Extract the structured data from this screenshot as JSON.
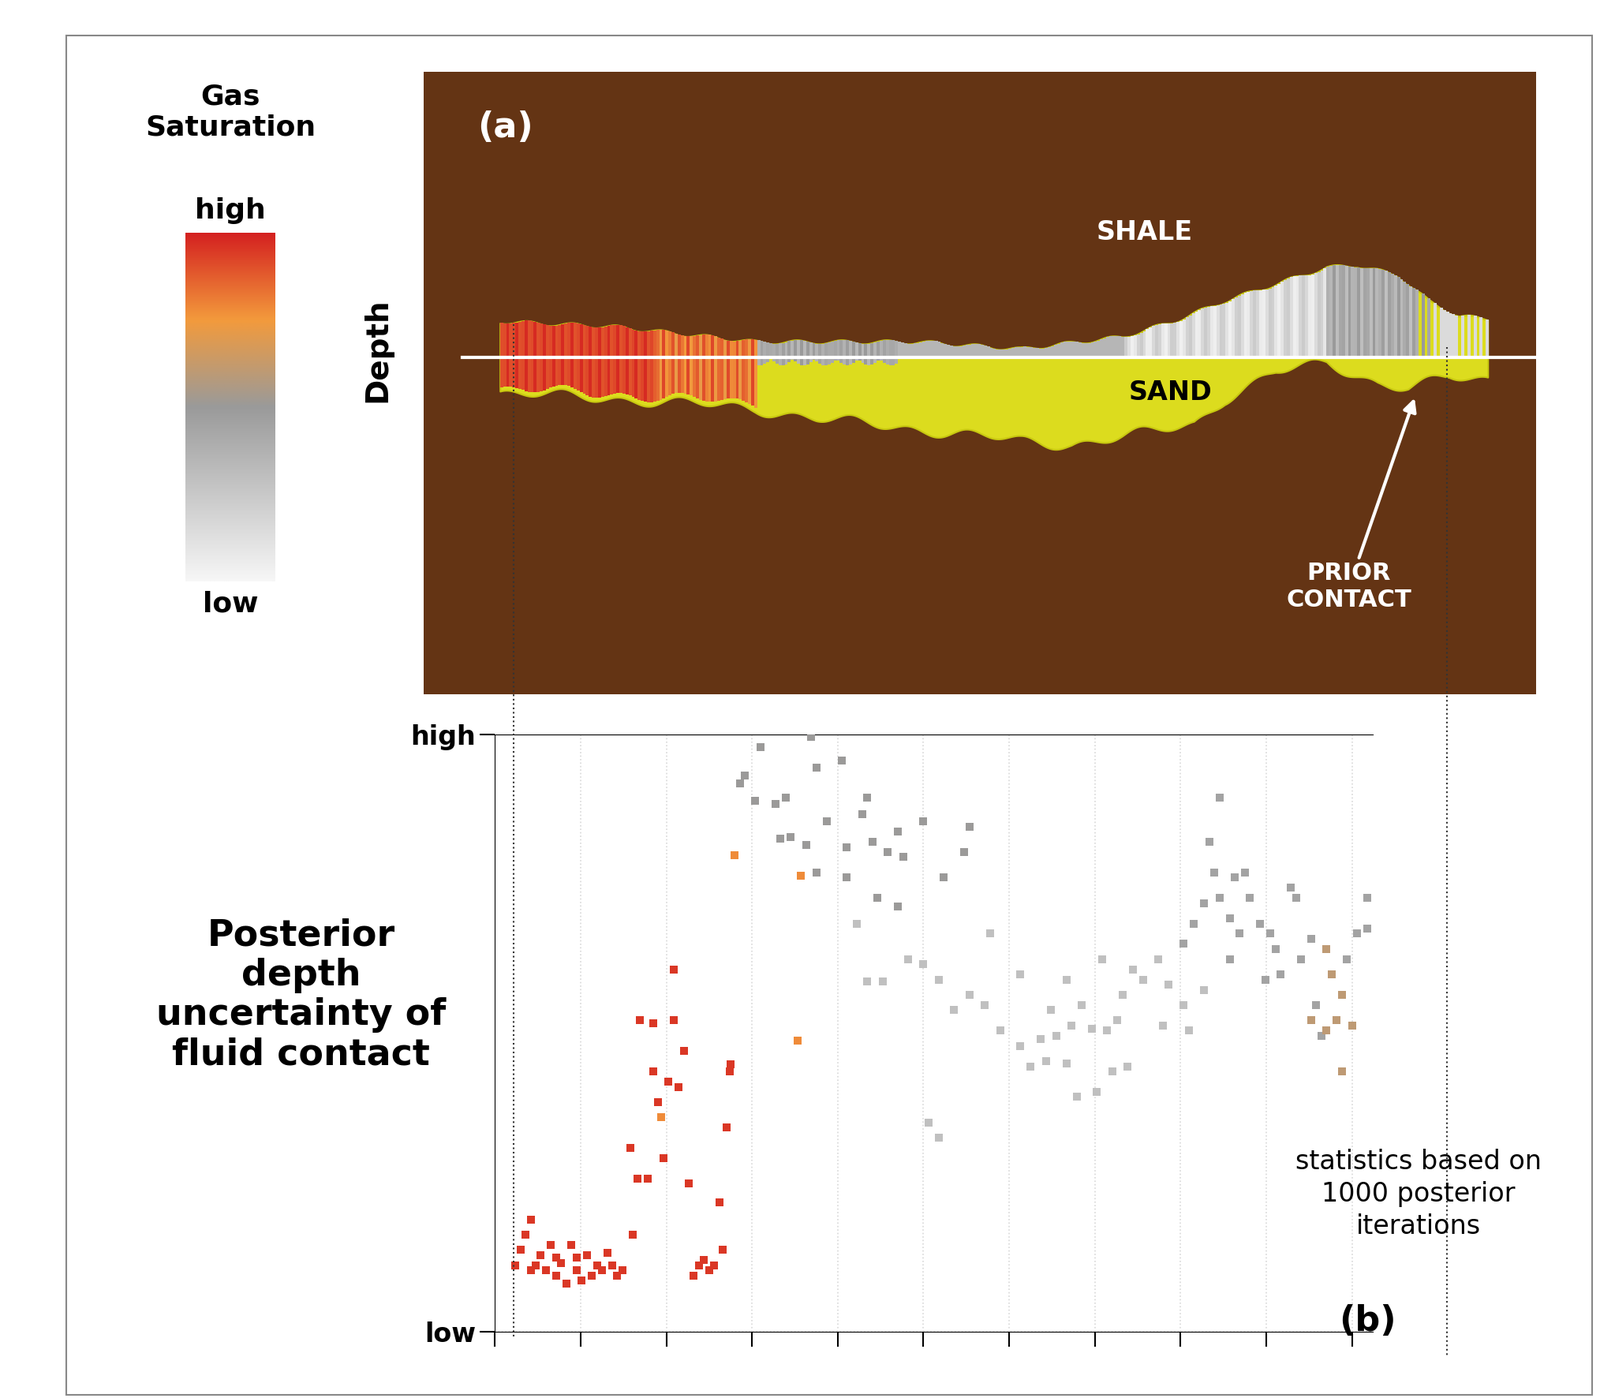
{
  "colorbar": {
    "label": "Gas\nSaturation",
    "range": [
      0,
      1
    ],
    "ticks": [
      {
        "value": 0,
        "label": "low"
      },
      {
        "value": 1,
        "label": "high"
      }
    ]
  },
  "cross_section": {
    "panel": "(a)",
    "y_label": "Depth",
    "labels": [
      "SHALE",
      "SAND"
    ],
    "annotation": "PRIOR\nCONTACT"
  },
  "chart_data": {
    "type": "scatter",
    "panel": "(b)",
    "y_label": "Posterior\ndepth\nuncertainty of\nfluid contact",
    "annotation": "statistics based on\n1000 posterior\niterations",
    "xlim": [
      0,
      860
    ],
    "xticks": [
      0,
      84,
      168,
      252,
      336,
      420,
      504,
      588,
      672,
      756,
      840
    ],
    "ylim": [
      0,
      585
    ],
    "yticks": [
      {
        "value": 0,
        "label": "low"
      },
      {
        "value": 585,
        "label": "high"
      }
    ],
    "grid": true,
    "tick_labels": "y",
    "marker": "square",
    "series": [
      {
        "saturation": 0.95,
        "x": [
          20,
          25,
          30,
          35,
          40,
          45,
          50,
          55,
          60,
          65,
          70,
          75,
          80,
          85,
          90,
          95,
          100,
          105,
          110,
          115,
          120,
          125,
          35,
          60,
          80,
          135,
          133,
          140,
          150,
          155,
          160,
          165,
          170,
          175,
          180,
          185,
          142,
          155,
          175,
          190,
          195,
          200,
          205,
          210,
          215,
          220,
          223,
          227,
          230,
          231
        ],
        "values": [
          65,
          80,
          95,
          110,
          65,
          75,
          60,
          85,
          55,
          67,
          47,
          85,
          60,
          50,
          75,
          55,
          65,
          60,
          77,
          65,
          55,
          60,
          60,
          73,
          73,
          95,
          180,
          150,
          150,
          255,
          225,
          170,
          245,
          305,
          240,
          275,
          305,
          302,
          355,
          145,
          55,
          65,
          70,
          60,
          65,
          127,
          80,
          200,
          255,
          262
        ]
      },
      {
        "saturation": 0.78,
        "x": [
          163,
          235,
          300,
          297
        ],
        "values": [
          210,
          467,
          447,
          285
        ]
      },
      {
        "saturation": 0.5,
        "x": [
          240,
          245,
          260,
          255,
          275,
          285,
          310,
          315,
          340,
          365,
          360,
          280,
          290,
          305,
          325,
          345,
          370,
          395,
          420,
          465,
          315,
          345,
          375,
          395,
          440,
          400,
          460,
          385
        ],
        "values": [
          537,
          545,
          573,
          520,
          517,
          523,
          583,
          553,
          560,
          523,
          507,
          483,
          485,
          477,
          500,
          475,
          480,
          490,
          500,
          495,
          450,
          445,
          425,
          417,
          445,
          465,
          470,
          470
        ]
      },
      {
        "saturation": 0.3,
        "x": [
          355,
          365,
          380,
          405,
          420,
          435,
          450,
          465,
          480,
          495,
          515,
          535,
          550,
          565,
          585,
          525,
          540,
          560,
          570,
          590,
          605,
          620,
          600,
          615,
          635,
          650,
          660,
          675,
          680,
          695,
          655,
          425,
          435,
          610,
          625,
          545,
          575,
          595,
          515,
          485,
          560
        ],
        "values": [
          400,
          343,
          343,
          365,
          360,
          345,
          315,
          330,
          320,
          295,
          280,
          287,
          290,
          300,
          297,
          260,
          265,
          263,
          230,
          235,
          255,
          260,
          295,
          330,
          345,
          365,
          340,
          320,
          295,
          335,
          300,
          205,
          190,
          305,
          355,
          315,
          320,
          365,
          350,
          390,
          345
        ]
      },
      {
        "saturation": 0.45,
        "x": [
          710,
          700,
          705,
          725,
          735,
          695,
          710,
          720,
          730,
          740,
          750,
          760,
          765,
          780,
          785,
          790,
          800,
          835,
          845,
          855,
          855,
          805,
          810,
          755,
          770,
          720,
          685,
          675
        ],
        "values": [
          523,
          480,
          450,
          445,
          450,
          420,
          425,
          405,
          390,
          425,
          400,
          390,
          375,
          435,
          425,
          365,
          385,
          365,
          390,
          425,
          395,
          320,
          290,
          345,
          350,
          365,
          400,
          380
        ]
      },
      {
        "saturation": 0.6,
        "x": [
          815,
          820,
          830,
          800,
          815,
          825,
          840,
          830
        ],
        "values": [
          375,
          350,
          330,
          305,
          295,
          305,
          300,
          255
        ]
      }
    ]
  }
}
